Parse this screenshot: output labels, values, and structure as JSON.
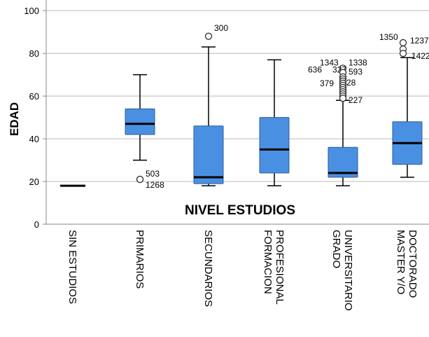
{
  "chart_data": {
    "type": "boxplot",
    "title": "",
    "xlabel": "NIVEL ESTUDIOS",
    "ylabel": "EDAD",
    "ylim": [
      0,
      105
    ],
    "yticks": [
      0,
      20,
      40,
      60,
      80,
      100
    ],
    "grid": true,
    "colors": {
      "box": "#4a90e2",
      "box_edge": "#2e5d96",
      "median": "#000000",
      "grid": "#d0d0d0"
    },
    "categories": [
      {
        "label": [
          "SIN ESTUDIOS"
        ],
        "min": 18,
        "q1": 18,
        "median": 18,
        "q3": 18,
        "max": 18,
        "outliers": []
      },
      {
        "label": [
          "PRIMARIOS"
        ],
        "min": 30,
        "q1": 42,
        "median": 47,
        "q3": 54,
        "max": 70,
        "outliers": [
          {
            "value": 21,
            "label": "503"
          },
          {
            "value": 21,
            "label": "1268"
          }
        ]
      },
      {
        "label": [
          "SECUNDARIOS"
        ],
        "min": 18,
        "q1": 19,
        "median": 22,
        "q3": 46,
        "max": 83,
        "outliers": [
          {
            "value": 88,
            "label": "300"
          }
        ]
      },
      {
        "label": [
          "FORMACION",
          "PROFESIONAL"
        ],
        "min": 18,
        "q1": 24,
        "median": 35,
        "q3": 50,
        "max": 77,
        "outliers": []
      },
      {
        "label": [
          "GRADO",
          "UNIVERSITARIO"
        ],
        "min": 18,
        "q1": 22,
        "median": 24,
        "q3": 36,
        "max": 58,
        "outliers": [
          {
            "value": 73,
            "label": "1343"
          },
          {
            "value": 73,
            "label": "1338"
          },
          {
            "value": 71,
            "label": "636"
          },
          {
            "value": 71,
            "label": "327"
          },
          {
            "value": 71,
            "label": "593"
          },
          {
            "value": 69,
            "label": ""
          },
          {
            "value": 68,
            "label": ""
          },
          {
            "value": 67,
            "label": ""
          },
          {
            "value": 66,
            "label": "379"
          },
          {
            "value": 66,
            "label": "28"
          },
          {
            "value": 65,
            "label": ""
          },
          {
            "value": 64,
            "label": ""
          },
          {
            "value": 63,
            "label": ""
          },
          {
            "value": 62,
            "label": ""
          },
          {
            "value": 61,
            "label": ""
          },
          {
            "value": 60,
            "label": ""
          },
          {
            "value": 59,
            "label": "227"
          }
        ]
      },
      {
        "label": [
          "MASTER Y/O",
          "DOCTORADO"
        ],
        "min": 22,
        "q1": 28,
        "median": 38,
        "q3": 48,
        "max": 78,
        "outliers": [
          {
            "value": 85,
            "label": "1350"
          },
          {
            "value": 82,
            "label": "1237"
          },
          {
            "value": 80,
            "label": "1422"
          }
        ]
      }
    ]
  }
}
